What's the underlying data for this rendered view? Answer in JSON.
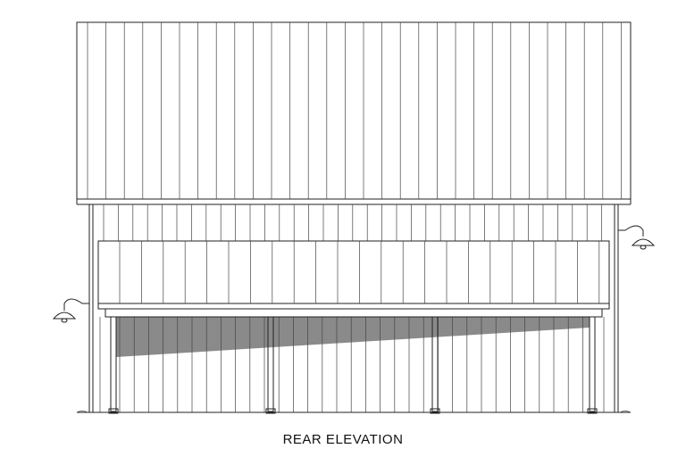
{
  "caption": "REAR ELEVATION"
}
